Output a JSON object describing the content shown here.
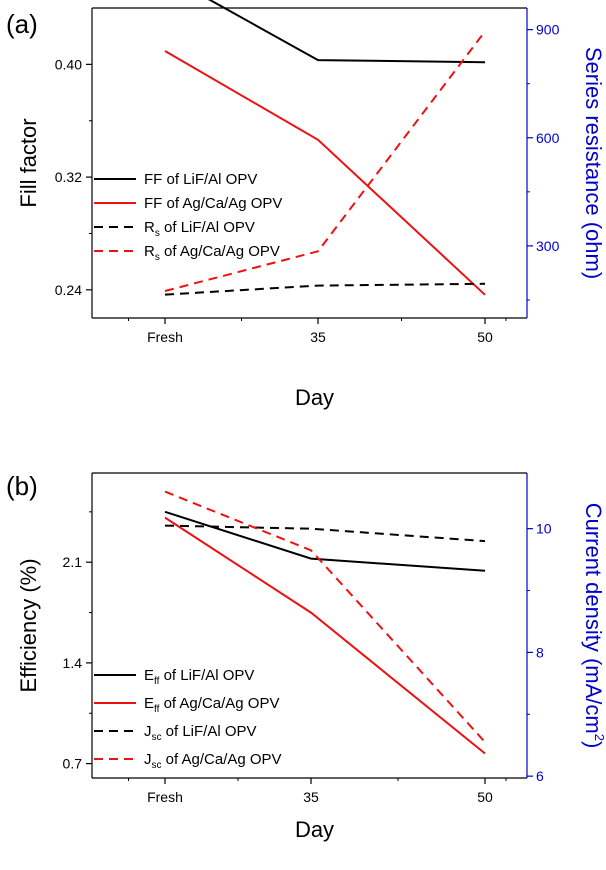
{
  "chart_data": [
    {
      "panel_label": "(a)",
      "type": "line",
      "categories": [
        "Fresh",
        "35",
        "50"
      ],
      "xlabel": "Day",
      "ylabel_left": "Fill factor",
      "ylabel_right": "Series resistance (ohm)",
      "ylim_left": [
        0.22,
        0.44
      ],
      "yticks_left": [
        0.24,
        0.32,
        0.4
      ],
      "ylim_right": [
        100,
        960
      ],
      "yticks_right": [
        300,
        600,
        900
      ],
      "grid": false,
      "legend_position": "middle-left",
      "colors": {
        "left_axis": "#000000",
        "right_axis": "#0000cc",
        "liF": "#000000",
        "ag": "#ee1111"
      },
      "series": [
        {
          "legend_main": "FF of LiF/Al OPV",
          "legend_sub": "",
          "legend_rest": "",
          "axis": "left",
          "style": "solid",
          "color": "#000000",
          "values": [
            0.4635,
            0.403,
            0.4015
          ]
        },
        {
          "legend_main": "FF of Ag/Ca/Ag OPV",
          "legend_sub": "",
          "legend_rest": "",
          "axis": "left",
          "style": "solid",
          "color": "#ee1111",
          "values": [
            0.4095,
            0.3465,
            0.2365
          ]
        },
        {
          "legend_main": "R",
          "legend_sub": "s",
          "legend_rest": " of LiF/Al OPV",
          "axis": "right",
          "style": "dashed",
          "color": "#000000",
          "values": [
            165,
            190,
            195
          ]
        },
        {
          "legend_main": "R",
          "legend_sub": "s",
          "legend_rest": " of Ag/Ca/Ag OPV",
          "axis": "right",
          "style": "dashed",
          "color": "#ee1111",
          "values": [
            175,
            285,
            895
          ]
        }
      ]
    },
    {
      "panel_label": "(b)",
      "type": "line",
      "categories": [
        "Fresh",
        "35",
        "50"
      ],
      "xlabel": "Day",
      "ylabel_left": "Efficiency (%)",
      "ylabel_right_main": "Current density (mA/cm",
      "ylabel_right_sup": "2",
      "ylabel_right_end": ")",
      "ylim_left": [
        0.6,
        2.72
      ],
      "yticks_left": [
        0.7,
        1.4,
        2.1
      ],
      "ylim_right": [
        5.97,
        10.9
      ],
      "yticks_right": [
        6,
        8,
        10
      ],
      "grid": false,
      "legend_position": "bottom-left",
      "colors": {
        "left_axis": "#000000",
        "right_axis": "#0000cc",
        "liF": "#000000",
        "ag": "#ee1111"
      },
      "series": [
        {
          "legend_main": "E",
          "legend_sub": "ff",
          "legend_rest": " of LiF/Al OPV",
          "axis": "left",
          "style": "solid",
          "color": "#000000",
          "values": [
            2.45,
            2.125,
            2.04
          ]
        },
        {
          "legend_main": "E",
          "legend_sub": "ff",
          "legend_rest": " of Ag/Ca/Ag OPV",
          "axis": "left",
          "style": "solid",
          "color": "#ee1111",
          "values": [
            2.41,
            1.75,
            0.77
          ]
        },
        {
          "legend_main": "J",
          "legend_sub": "sc",
          "legend_rest": " of LiF/Al OPV",
          "axis": "right",
          "style": "dashed",
          "color": "#000000",
          "values": [
            10.05,
            10.0,
            9.8
          ]
        },
        {
          "legend_main": "J",
          "legend_sub": "sc",
          "legend_rest": " of Ag/Ca/Ag OPV",
          "axis": "right",
          "style": "dashed",
          "color": "#ee1111",
          "values": [
            10.6,
            9.65,
            6.55
          ]
        }
      ]
    }
  ]
}
